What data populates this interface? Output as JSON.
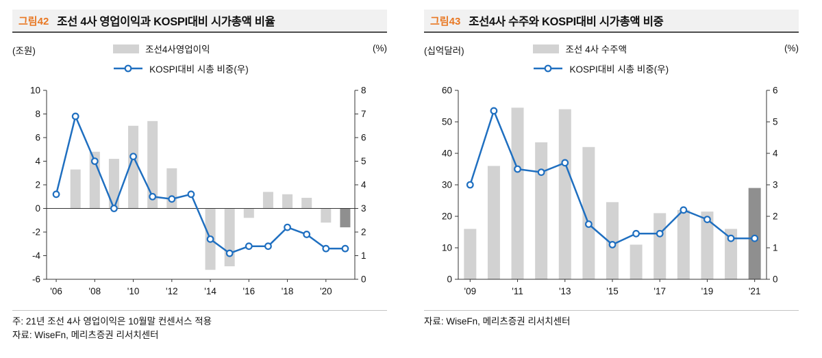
{
  "colors": {
    "bar": "#d2d2d2",
    "bar_highlight": "#8f8f8f",
    "line": "#1f6fc0",
    "tag": "#e87722",
    "axis": "#333333",
    "header_bg": "#f1f1f1",
    "header_border": "#4d4d4d",
    "separator": "#c4c4c4",
    "text": "#111111"
  },
  "chart_data": [
    {
      "type": "bar+line",
      "tag": "그림42",
      "title": "조선 4사 영업이익과 KOSPI대비 시가총액 비율",
      "left_unit": "(조원)",
      "right_unit": "(%)",
      "legend": [
        {
          "swatch": "bar",
          "label": "조선4사영업이익"
        },
        {
          "swatch": "line",
          "label": "KOSPI대비 시총 비중(우)"
        }
      ],
      "x": [
        2006,
        2007,
        2008,
        2009,
        2010,
        2011,
        2012,
        2013,
        2014,
        2015,
        2016,
        2017,
        2018,
        2019,
        2020,
        2021
      ],
      "x_tick_years": [
        2006,
        2008,
        2010,
        2012,
        2014,
        2016,
        2018,
        2020
      ],
      "x_tick_labels": [
        "'06",
        "'08",
        "'10",
        "'12",
        "'14",
        "'16",
        "'18",
        "'20"
      ],
      "series": [
        {
          "name": "조선4사영업이익",
          "type": "bar",
          "axis": "left",
          "highlight_last": true,
          "values": [
            0,
            3.3,
            4.8,
            4.2,
            7.0,
            7.4,
            3.4,
            0,
            -5.2,
            -4.9,
            -0.8,
            1.4,
            1.2,
            0.9,
            -1.2,
            -1.6
          ]
        },
        {
          "name": "KOSPI대비 시총 비중(우)",
          "type": "line",
          "axis": "right",
          "values": [
            3.6,
            6.9,
            5.0,
            3.0,
            5.2,
            3.5,
            3.4,
            3.6,
            1.7,
            1.1,
            1.4,
            1.4,
            2.2,
            1.9,
            1.3,
            1.3
          ]
        }
      ],
      "left_axis": {
        "min": -6,
        "max": 10,
        "step": 2
      },
      "right_axis": {
        "min": 0,
        "max": 8,
        "step": 1
      },
      "zero_line": true,
      "grid": false,
      "notes": [
        "주: 21년 조선 4사 영업이익은 10월말 컨센서스 적용",
        "자료: WiseFn, 메리츠증권 리서치센터"
      ]
    },
    {
      "type": "bar+line",
      "tag": "그림43",
      "title": "조선4사 수주와 KOSPI대비 시가총액 비중",
      "left_unit": "(십억달러)",
      "right_unit": "(%)",
      "legend": [
        {
          "swatch": "bar",
          "label": "조선 4사 수주액"
        },
        {
          "swatch": "line",
          "label": "KOSPI대비 시총 비중(우)"
        }
      ],
      "x": [
        2009,
        2010,
        2011,
        2012,
        2013,
        2014,
        2015,
        2016,
        2017,
        2018,
        2019,
        2020,
        2021
      ],
      "x_tick_years": [
        2009,
        2011,
        2013,
        2015,
        2017,
        2019,
        2021
      ],
      "x_tick_labels": [
        "'09",
        "'11",
        "'13",
        "'15",
        "'17",
        "'19",
        "'21"
      ],
      "series": [
        {
          "name": "조선 4사 수주액",
          "type": "bar",
          "axis": "left",
          "highlight_last": true,
          "values": [
            16,
            36,
            54.5,
            43.5,
            54,
            42,
            24.5,
            11,
            21,
            22,
            21.5,
            16,
            29
          ]
        },
        {
          "name": "KOSPI대비 시총 비중(우)",
          "type": "line",
          "axis": "right",
          "values": [
            3.0,
            5.35,
            3.5,
            3.4,
            3.7,
            1.75,
            1.1,
            1.45,
            1.45,
            2.2,
            1.9,
            1.3,
            1.3
          ]
        }
      ],
      "left_axis": {
        "min": 0,
        "max": 60,
        "step": 10
      },
      "right_axis": {
        "min": 0,
        "max": 6,
        "step": 1
      },
      "zero_line": false,
      "grid": false,
      "notes": [
        "자료: WiseFn, 메리츠증권 리서치센터"
      ]
    }
  ]
}
